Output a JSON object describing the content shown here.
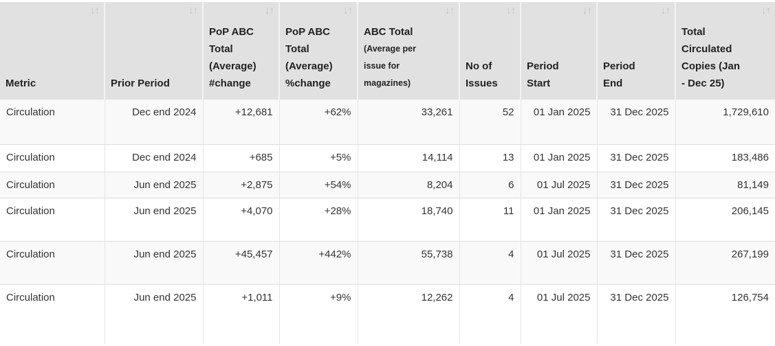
{
  "icons": {
    "sort": "↓↑"
  },
  "colors": {
    "header_bg": "#e1e1e1",
    "stripe_row_bg": "#f9f9f9",
    "row_bg": "#ffffff",
    "header_text": "#222222",
    "body_text": "#333333",
    "sort_icon": "#c3c3c3",
    "border": "#dddddd"
  },
  "table": {
    "columns": [
      {
        "label": "Metric"
      },
      {
        "label": "Prior Period"
      },
      {
        "label": "PoP ABC Total (Average) #change"
      },
      {
        "label": "PoP ABC Total (Average) %change"
      },
      {
        "label": "ABC Total",
        "sublabel": "(Average per issue for magazines)"
      },
      {
        "label": "No of Issues"
      },
      {
        "label": "Period Start"
      },
      {
        "label": "Period End"
      },
      {
        "label": "Total Circulated Copies (Jan - Dec 25)"
      }
    ],
    "rows": [
      [
        "Circulation",
        "Dec end 2024",
        "+12,681",
        "+62%",
        "33,261",
        "52",
        "01 Jan 2025",
        "31 Dec 2025",
        "1,729,610"
      ],
      [
        "Circulation",
        "Dec end 2024",
        "+685",
        "+5%",
        "14,114",
        "13",
        "01 Jan 2025",
        "31 Dec 2025",
        "183,486"
      ],
      [
        "Circulation",
        "Jun end 2025",
        "+2,875",
        "+54%",
        "8,204",
        "6",
        "01 Jul 2025",
        "31 Dec 2025",
        "81,149"
      ],
      [
        "Circulation",
        "Jun end 2025",
        "+4,070",
        "+28%",
        "18,740",
        "11",
        "01 Jan 2025",
        "31 Dec 2025",
        "206,145"
      ],
      [
        "Circulation",
        "Jun end 2025",
        "+45,457",
        "+442%",
        "55,738",
        "4",
        "01 Jul 2025",
        "31 Dec 2025",
        "267,199"
      ],
      [
        "Circulation",
        "Jun end 2025",
        "+1,011",
        "+9%",
        "12,262",
        "4",
        "01 Jul 2025",
        "31 Dec 2025",
        "126,754"
      ]
    ]
  }
}
